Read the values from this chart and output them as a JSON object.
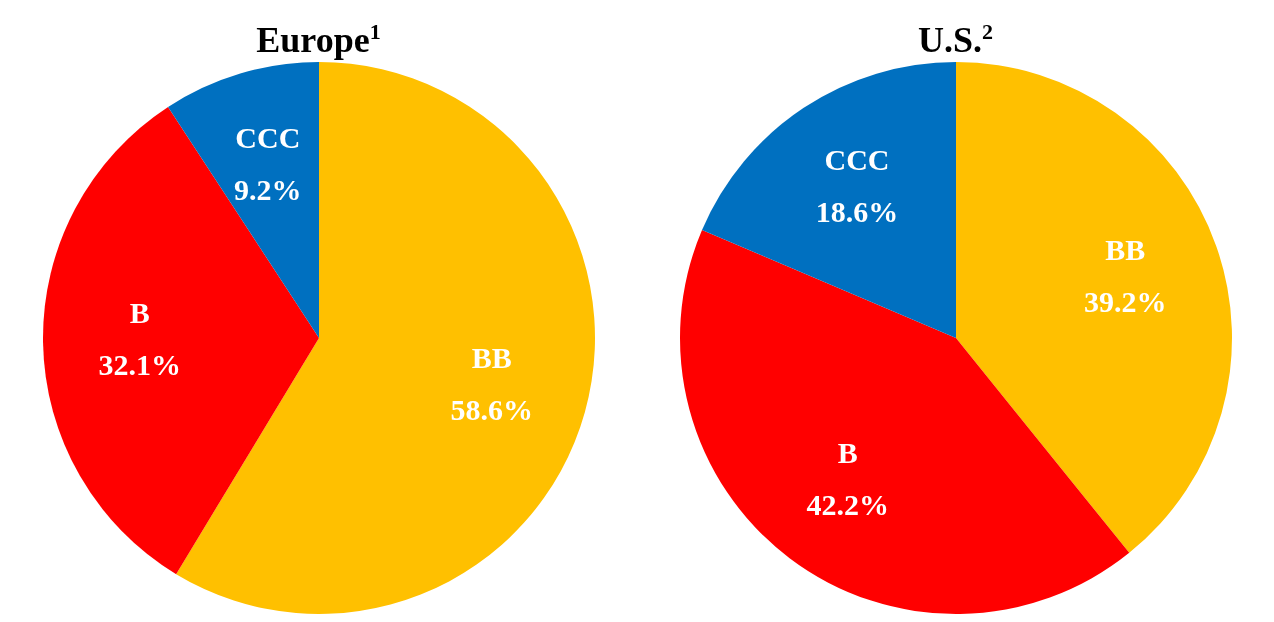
{
  "chart_data": [
    {
      "type": "pie",
      "title": "Europe$^{1}$",
      "categories": [
        "BB",
        "B",
        "CCC"
      ],
      "values": [
        58.6,
        32.1,
        9.2
      ],
      "colors": [
        "#ffc000",
        "#ff0000",
        "#0070c0"
      ],
      "value_labels": [
        "58.6%",
        "32.1%",
        "9.2%"
      ]
    },
    {
      "type": "pie",
      "title": "U.S.$^{2}$",
      "categories": [
        "BB",
        "B",
        "CCC"
      ],
      "values": [
        39.2,
        42.2,
        18.6
      ],
      "colors": [
        "#ffc000",
        "#ff0000",
        "#0070c0"
      ],
      "value_labels": [
        "39.2%",
        "42.2%",
        "18.6%"
      ]
    }
  ]
}
